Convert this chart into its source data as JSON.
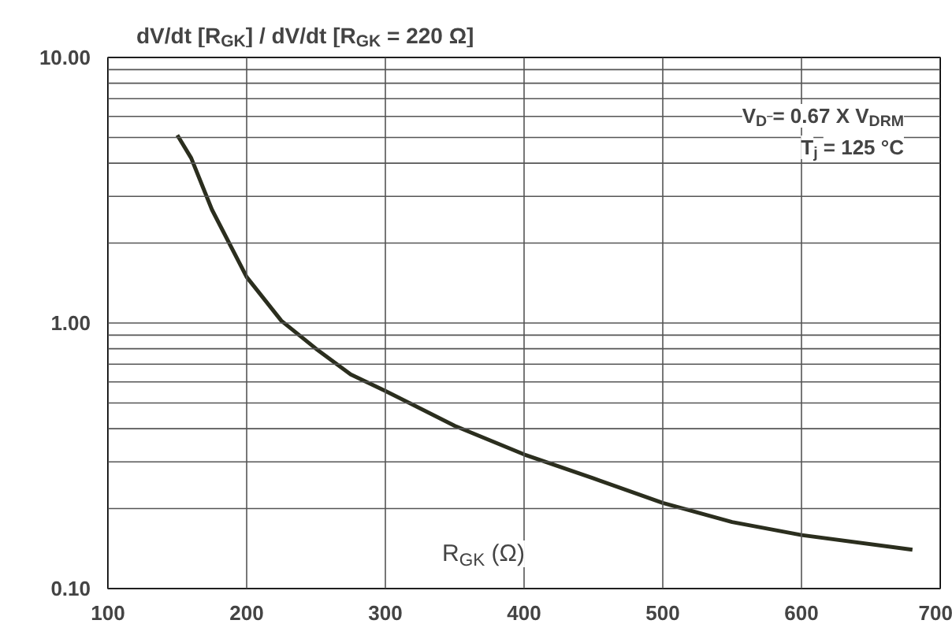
{
  "chart_data": {
    "type": "line",
    "title": "dV/dt [R$_{GK}$] / dV/dt [R$_{GK}$ = 220 Ω]",
    "xlabel": "R$_{GK}$ (Ω)",
    "annotations": [
      "V$_{D}$ = 0.67 X V$_{DRM}$",
      "T$_{j}$ = 125 °C"
    ],
    "x": [
      150,
      160,
      175,
      200,
      225,
      250,
      275,
      300,
      350,
      400,
      450,
      500,
      550,
      600,
      680
    ],
    "series": [
      {
        "color": "#2b2e1e",
        "values": [
          5.1,
          4.18,
          2.67,
          1.49,
          1.02,
          0.8,
          0.64,
          0.555,
          0.41,
          0.32,
          0.26,
          0.21,
          0.178,
          0.159,
          0.14
        ]
      }
    ],
    "log": "y",
    "xlim": [
      100,
      700
    ],
    "ylim": [
      0.1,
      10
    ],
    "xticks": [
      100,
      200,
      300,
      400,
      500,
      600,
      700
    ],
    "yticks": [
      {
        "value": 0.1,
        "label": "0.10"
      },
      {
        "value": 0.2,
        "label": null
      },
      {
        "value": 0.3,
        "label": null
      },
      {
        "value": 0.4,
        "label": null
      },
      {
        "value": 0.5,
        "label": null
      },
      {
        "value": 0.6,
        "label": null
      },
      {
        "value": 0.7,
        "label": null
      },
      {
        "value": 0.8,
        "label": null
      },
      {
        "value": 0.9,
        "label": null
      },
      {
        "value": 1,
        "label": "1.00"
      },
      {
        "value": 2,
        "label": null
      },
      {
        "value": 3,
        "label": null
      },
      {
        "value": 4,
        "label": null
      },
      {
        "value": 5,
        "label": null
      },
      {
        "value": 6,
        "label": null
      },
      {
        "value": 7,
        "label": null
      },
      {
        "value": 8,
        "label": null
      },
      {
        "value": 9,
        "label": null
      },
      {
        "value": 10,
        "label": "10.00"
      }
    ],
    "grid": true,
    "marker": "none",
    "line_style": "solid"
  }
}
